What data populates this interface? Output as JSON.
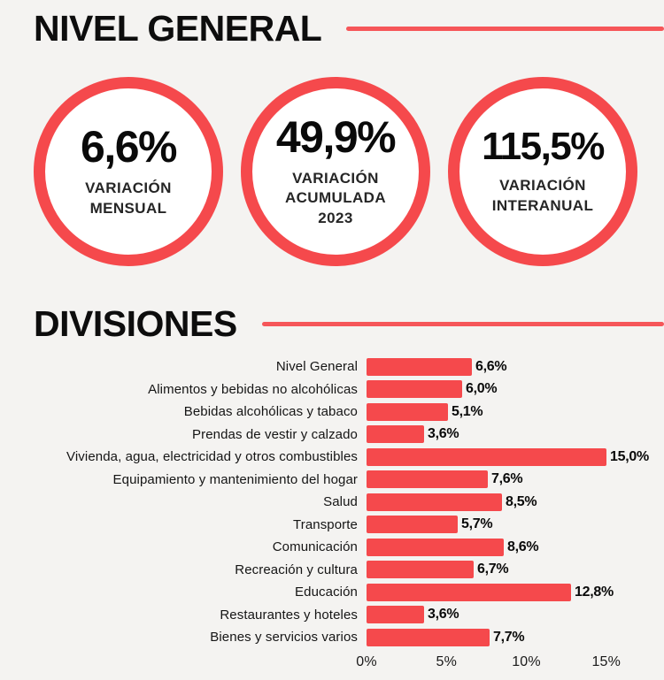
{
  "page": {
    "background": "#f4f3f1",
    "accent": "#f5494c"
  },
  "nivel_general": {
    "title": "NIVEL GENERAL",
    "stats": [
      {
        "value": "6,6%",
        "label": "VARIACIÓN MENSUAL"
      },
      {
        "value": "49,9%",
        "label": "VARIACIÓN ACUMULADA 2023"
      },
      {
        "value": "115,5%",
        "label": "VARIACIÓN INTERANUAL"
      }
    ]
  },
  "divisiones": {
    "title": "DIVISIONES"
  },
  "chart_data": {
    "type": "bar",
    "orientation": "horizontal",
    "title": "DIVISIONES",
    "categories": [
      "Nivel General",
      "Alimentos y bebidas no alcohólicas",
      "Bebidas alcohólicas y tabaco",
      "Prendas de vestir y calzado",
      "Vivienda, agua, electricidad y otros combustibles",
      "Equipamiento y mantenimiento del hogar",
      "Salud",
      "Transporte",
      "Comunicación",
      "Recreación y cultura",
      "Educación",
      "Restaurantes y hoteles",
      "Bienes y servicios varios"
    ],
    "values": [
      6.6,
      6.0,
      5.1,
      3.6,
      15.0,
      7.6,
      8.5,
      5.7,
      8.6,
      6.7,
      12.8,
      3.6,
      7.7
    ],
    "value_labels": [
      "6,6%",
      "6,0%",
      "5,1%",
      "3,6%",
      "15,0%",
      "7,6%",
      "8,5%",
      "5,7%",
      "8,6%",
      "6,7%",
      "12,8%",
      "3,6%",
      "7,7%"
    ],
    "xlabel": "",
    "ylabel": "",
    "xlim": [
      0,
      16.6
    ],
    "x_ticks": [
      {
        "value": 0,
        "label": "0%"
      },
      {
        "value": 5,
        "label": "5%"
      },
      {
        "value": 10,
        "label": "10%"
      },
      {
        "value": 15,
        "label": "15%"
      }
    ],
    "grid": false,
    "legend": false,
    "bar_color": "#f5494c"
  }
}
